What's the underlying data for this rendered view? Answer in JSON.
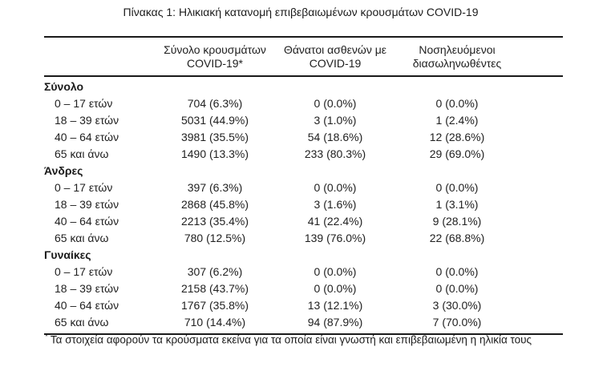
{
  "title": "Πίνακας 1: Ηλικιακή κατανομή επιβεβαιωμένων κρουσμάτων COVID-19",
  "table": {
    "columns": [
      {
        "line1": "Σύνολο κρουσμάτων",
        "line2": "COVID-19*"
      },
      {
        "line1": "Θάνατοι ασθενών με",
        "line2": "COVID-19"
      },
      {
        "line1": "Νοσηλευόμενοι",
        "line2": "διασωληνωθέντες"
      }
    ],
    "sections": [
      {
        "label": "Σύνολο",
        "rows": [
          {
            "age": "0 – 17 ετών",
            "cells": [
              "704 (6.3%)",
              "0 (0.0%)",
              "0 (0.0%)"
            ]
          },
          {
            "age": "18 – 39 ετών",
            "cells": [
              "5031 (44.9%)",
              "3 (1.0%)",
              "1 (2.4%)"
            ]
          },
          {
            "age": "40 – 64 ετών",
            "cells": [
              "3981 (35.5%)",
              "54 (18.6%)",
              "12 (28.6%)"
            ]
          },
          {
            "age": "65 και άνω",
            "cells": [
              "1490 (13.3%)",
              "233 (80.3%)",
              "29 (69.0%)"
            ]
          }
        ]
      },
      {
        "label": "Άνδρες",
        "rows": [
          {
            "age": "0 – 17 ετών",
            "cells": [
              "397 (6.3%)",
              "0 (0.0%)",
              "0 (0.0%)"
            ]
          },
          {
            "age": "18 – 39 ετών",
            "cells": [
              "2868 (45.8%)",
              "3 (1.6%)",
              "1 (3.1%)"
            ]
          },
          {
            "age": "40 – 64 ετών",
            "cells": [
              "2213 (35.4%)",
              "41 (22.4%)",
              "9 (28.1%)"
            ]
          },
          {
            "age": "65 και άνω",
            "cells": [
              "780 (12.5%)",
              "139 (76.0%)",
              "22 (68.8%)"
            ]
          }
        ]
      },
      {
        "label": "Γυναίκες",
        "rows": [
          {
            "age": "0 – 17 ετών",
            "cells": [
              "307 (6.2%)",
              "0 (0.0%)",
              "0 (0.0%)"
            ]
          },
          {
            "age": "18 – 39 ετών",
            "cells": [
              "2158 (43.7%)",
              "0 (0.0%)",
              "0 (0.0%)"
            ]
          },
          {
            "age": "40 – 64 ετών",
            "cells": [
              "1767 (35.8%)",
              "13 (12.1%)",
              "3 (30.0%)"
            ]
          },
          {
            "age": "65 και άνω",
            "cells": [
              "710 (14.4%)",
              "94 (87.9%)",
              "7 (70.0%)"
            ]
          }
        ]
      }
    ],
    "footnote_marker": "*",
    "footnote": "Τα στοιχεία αφορούν τα κρούσματα εκείνα για τα οποία είναι γνωστή και επιβεβαιωμένη η ηλικία τους"
  },
  "colors": {
    "text": "#1f1f1f",
    "rule": "#1a1a1a",
    "background": "#ffffff"
  }
}
